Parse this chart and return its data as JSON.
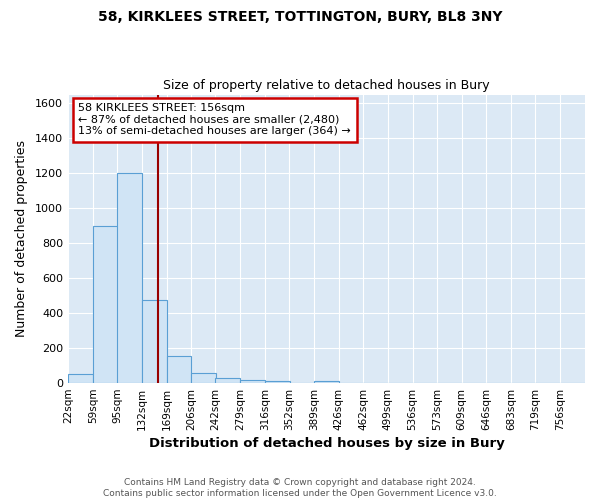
{
  "title_line1": "58, KIRKLEES STREET, TOTTINGTON, BURY, BL8 3NY",
  "title_line2": "Size of property relative to detached houses in Bury",
  "xlabel": "Distribution of detached houses by size in Bury",
  "ylabel": "Number of detached properties",
  "footer_line1": "Contains HM Land Registry data © Crown copyright and database right 2024.",
  "footer_line2": "Contains public sector information licensed under the Open Government Licence v3.0.",
  "annotation_line1": "58 KIRKLEES STREET: 156sqm",
  "annotation_line2": "← 87% of detached houses are smaller (2,480)",
  "annotation_line3": "13% of semi-detached houses are larger (364) →",
  "bar_labels": [
    "22sqm",
    "59sqm",
    "95sqm",
    "132sqm",
    "169sqm",
    "206sqm",
    "242sqm",
    "279sqm",
    "316sqm",
    "352sqm",
    "389sqm",
    "426sqm",
    "462sqm",
    "499sqm",
    "536sqm",
    "573sqm",
    "609sqm",
    "646sqm",
    "683sqm",
    "719sqm",
    "756sqm"
  ],
  "bar_values": [
    50,
    900,
    1200,
    475,
    155,
    55,
    30,
    18,
    12,
    0,
    12,
    0,
    0,
    0,
    0,
    0,
    0,
    0,
    0,
    0,
    0
  ],
  "bar_color": "#d0e4f5",
  "bar_edge_color": "#5a9fd4",
  "fig_bg_color": "#ffffff",
  "plot_bg_color": "#dce9f5",
  "grid_color": "#ffffff",
  "vline_x": 156,
  "vline_color": "#990000",
  "ylim": [
    0,
    1650
  ],
  "yticks": [
    0,
    200,
    400,
    600,
    800,
    1000,
    1200,
    1400,
    1600
  ],
  "bin_width": 37
}
